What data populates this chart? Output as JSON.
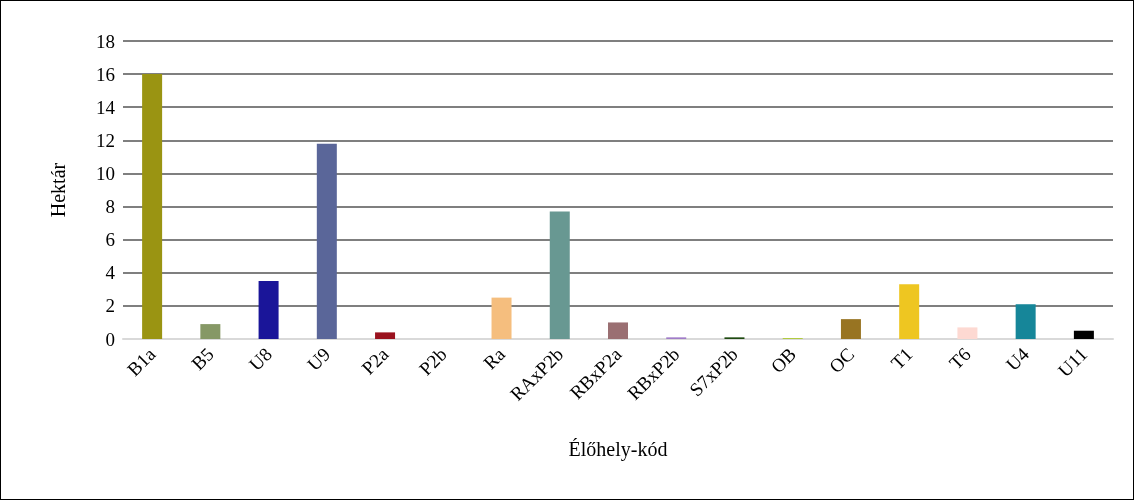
{
  "chart_data": {
    "type": "bar",
    "xlabel": "Élőhely-kód",
    "ylabel": "Hektár",
    "categories": [
      "B1a",
      "B5",
      "U8",
      "U9",
      "P2a",
      "P2b",
      "Ra",
      "RAxP2b",
      "RBxP2a",
      "RBxP2b",
      "S7xP2b",
      "OB",
      "OC",
      "T1",
      "T6",
      "U4",
      "U11"
    ],
    "values": [
      16.0,
      0.9,
      3.5,
      11.8,
      0.4,
      0,
      2.5,
      7.7,
      1.0,
      0.1,
      0.1,
      0.05,
      1.2,
      3.3,
      0.7,
      2.1,
      0.5
    ],
    "colors": [
      "#9a9412",
      "#869866",
      "#1a1599",
      "#5a6699",
      "#9a121e",
      "#999999",
      "#f5be7e",
      "#689892",
      "#9a6f72",
      "#a07cc8",
      "#1e4a10",
      "#a8c820",
      "#987422",
      "#eec621",
      "#fdd9d2",
      "#168699",
      "#000000"
    ],
    "ylim": [
      0,
      18
    ],
    "yticks": [
      0,
      2,
      4,
      6,
      8,
      10,
      12,
      14,
      16,
      18
    ],
    "grid": "y"
  }
}
